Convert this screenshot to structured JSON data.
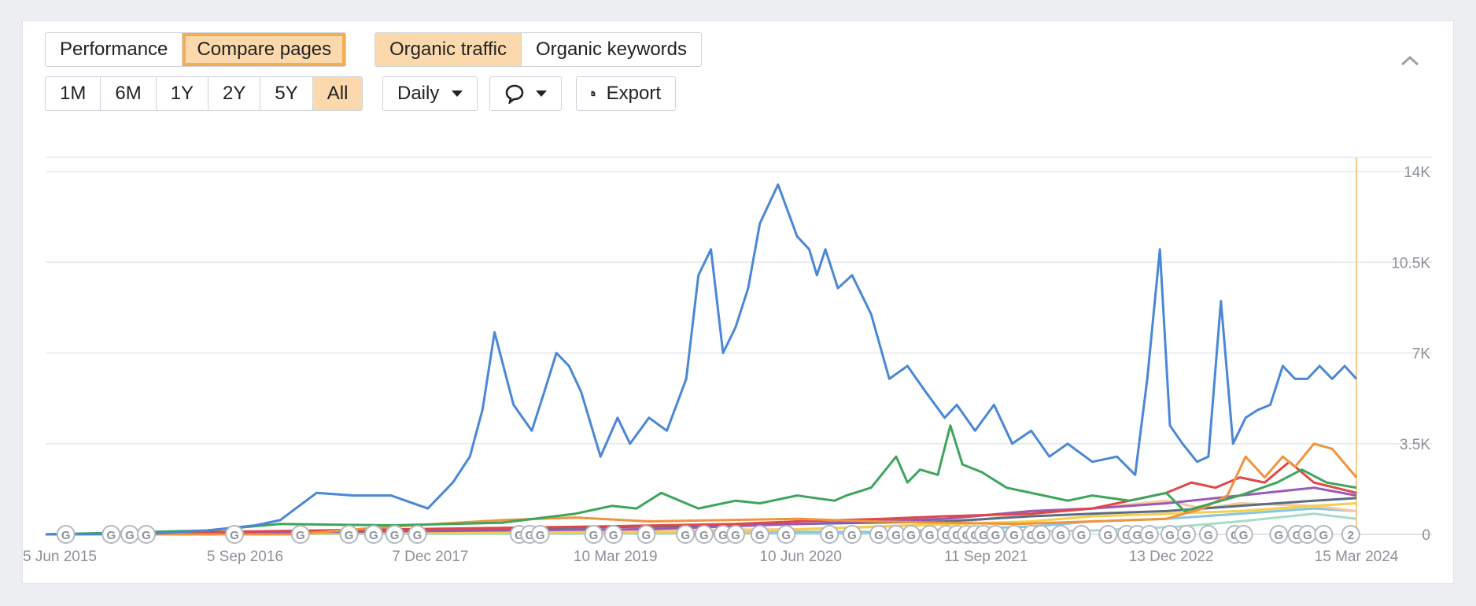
{
  "toolbar": {
    "view_tabs": [
      "Performance",
      "Compare pages"
    ],
    "metric_tabs": [
      "Organic traffic",
      "Organic keywords"
    ],
    "ranges": [
      "1M",
      "6M",
      "1Y",
      "2Y",
      "5Y",
      "All"
    ],
    "interval": "Daily",
    "export_label": "Export",
    "active_view": "Compare pages",
    "active_metric": "Organic traffic",
    "active_range": "All"
  },
  "icons": [
    "chevron-up-icon",
    "caret-down-icon",
    "comment-icon",
    "download-file-icon",
    "google-update-icon"
  ],
  "colors": {
    "accent": "#fbd9ac",
    "accent_border": "#f3ae4d",
    "grid": "#e6e8eb",
    "tick": "#8b9099"
  },
  "annotations": {
    "update_marker_label": "G",
    "cluster_count": "2"
  },
  "chart_data": {
    "type": "line",
    "title": "",
    "xlabel": "",
    "ylabel": "",
    "x_ticks": [
      "5 Jun 2015",
      "5 Sep 2016",
      "7 Dec 2017",
      "10 Mar 2019",
      "10 Jun 2020",
      "11 Sep 2021",
      "13 Dec 2022",
      "15 Mar 2024"
    ],
    "y_ticks": [
      "0",
      "3.5K",
      "7K",
      "10.5K",
      "14K"
    ],
    "ylim": [
      0,
      14000
    ],
    "xlim": [
      "2015-05-01",
      "2024-03-15"
    ],
    "grid": true,
    "legend": "none",
    "series": [
      {
        "color": "#4a87d4",
        "x": [
          "2015-05-01",
          "2016-01-01",
          "2016-06-01",
          "2016-10-01",
          "2016-12-01",
          "2017-03-01",
          "2017-06-01",
          "2017-09-01",
          "2017-12-01",
          "2018-02-01",
          "2018-03-15",
          "2018-04-15",
          "2018-05-15",
          "2018-07-01",
          "2018-08-15",
          "2018-09-15",
          "2018-10-15",
          "2018-11-15",
          "2018-12-15",
          "2019-02-01",
          "2019-03-15",
          "2019-04-15",
          "2019-06-01",
          "2019-07-15",
          "2019-09-01",
          "2019-10-01",
          "2019-11-01",
          "2019-12-01",
          "2020-01-01",
          "2020-02-01",
          "2020-03-01",
          "2020-04-15",
          "2020-06-01",
          "2020-07-01",
          "2020-07-20",
          "2020-08-10",
          "2020-09-10",
          "2020-10-15",
          "2020-12-01",
          "2021-01-15",
          "2021-03-01",
          "2021-04-15",
          "2021-06-01",
          "2021-07-01",
          "2021-08-15",
          "2021-10-01",
          "2021-11-15",
          "2022-01-01",
          "2022-02-15",
          "2022-04-01",
          "2022-06-01",
          "2022-08-01",
          "2022-09-15",
          "2022-10-15",
          "2022-11-15",
          "2022-12-10",
          "2023-01-10",
          "2023-02-15",
          "2023-03-15",
          "2023-04-15",
          "2023-05-15",
          "2023-06-15",
          "2023-07-15",
          "2023-08-15",
          "2023-09-15",
          "2023-10-15",
          "2023-11-15",
          "2023-12-15",
          "2024-01-15",
          "2024-02-15",
          "2024-03-15"
        ],
        "y": [
          0,
          20,
          150,
          350,
          550,
          1600,
          1500,
          1500,
          1000,
          2000,
          3000,
          4800,
          7800,
          5000,
          4000,
          5500,
          7000,
          6500,
          5500,
          3000,
          4500,
          3500,
          4500,
          4000,
          6000,
          10000,
          11000,
          7000,
          8000,
          9500,
          12000,
          13500,
          11500,
          11000,
          10000,
          11000,
          9500,
          10000,
          8500,
          6000,
          6500,
          5500,
          4500,
          5000,
          4000,
          5000,
          3500,
          4000,
          3000,
          3500,
          2800,
          3000,
          2300,
          6000,
          11000,
          4200,
          3500,
          2800,
          3000,
          9000,
          3500,
          4500,
          4800,
          5000,
          6500,
          6000,
          6000,
          6500,
          6000,
          6500,
          6000
        ]
      },
      {
        "color": "#3fa45c",
        "x": [
          "2015-05-01",
          "2016-06-01",
          "2016-12-01",
          "2017-09-01",
          "2018-06-01",
          "2018-12-01",
          "2019-03-01",
          "2019-05-01",
          "2019-07-01",
          "2019-10-01",
          "2020-01-01",
          "2020-03-01",
          "2020-06-01",
          "2020-09-01",
          "2020-10-01",
          "2020-12-01",
          "2021-02-01",
          "2021-03-01",
          "2021-04-01",
          "2021-05-15",
          "2021-06-15",
          "2021-07-15",
          "2021-09-01",
          "2021-11-01",
          "2022-02-01",
          "2022-04-01",
          "2022-06-01",
          "2022-09-01",
          "2022-12-01",
          "2023-01-15",
          "2023-03-01",
          "2023-06-01",
          "2023-09-01",
          "2023-11-01",
          "2024-01-01",
          "2024-03-15"
        ],
        "y": [
          0,
          150,
          400,
          350,
          450,
          800,
          1100,
          1000,
          1600,
          1000,
          1300,
          1200,
          1500,
          1300,
          1500,
          1800,
          3000,
          2000,
          2500,
          2300,
          4200,
          2700,
          2400,
          1800,
          1500,
          1300,
          1500,
          1300,
          1600,
          900,
          1100,
          1500,
          2000,
          2500,
          2000,
          1800
        ]
      },
      {
        "color": "#f0943d",
        "x": [
          "2015-05-01",
          "2017-01-01",
          "2017-09-01",
          "2018-06-01",
          "2018-12-01",
          "2019-06-01",
          "2019-12-01",
          "2020-06-01",
          "2020-12-01",
          "2021-06-01",
          "2021-12-01",
          "2022-06-01",
          "2022-12-01",
          "2023-03-01",
          "2023-05-01",
          "2023-06-15",
          "2023-08-01",
          "2023-09-15",
          "2023-10-15",
          "2023-12-01",
          "2024-01-15",
          "2024-03-15"
        ],
        "y": [
          0,
          0,
          300,
          550,
          650,
          500,
          550,
          600,
          500,
          450,
          400,
          500,
          600,
          1000,
          1500,
          3000,
          2200,
          3000,
          2600,
          3500,
          3300,
          2200
        ]
      },
      {
        "color": "#e04848",
        "x": [
          "2015-05-01",
          "2019-01-01",
          "2020-01-01",
          "2020-06-01",
          "2021-01-01",
          "2021-06-01",
          "2022-01-01",
          "2022-06-01",
          "2022-09-01",
          "2022-12-01",
          "2023-02-01",
          "2023-04-01",
          "2023-06-01",
          "2023-08-01",
          "2023-10-01",
          "2023-12-01",
          "2024-03-15"
        ],
        "y": [
          0,
          300,
          400,
          500,
          600,
          700,
          800,
          1000,
          1300,
          1600,
          2000,
          1800,
          2200,
          2000,
          2800,
          2000,
          1600
        ]
      },
      {
        "color": "#9b59b6",
        "x": [
          "2015-05-01",
          "2019-06-01",
          "2020-06-01",
          "2021-06-01",
          "2022-01-01",
          "2022-06-01",
          "2022-12-01",
          "2023-06-01",
          "2023-12-01",
          "2024-03-15"
        ],
        "y": [
          0,
          200,
          400,
          600,
          900,
          1000,
          1200,
          1500,
          1800,
          1500
        ]
      },
      {
        "color": "#5c6d82",
        "x": [
          "2015-05-01",
          "2019-06-01",
          "2020-06-01",
          "2021-06-01",
          "2022-01-01",
          "2022-06-01",
          "2022-12-01",
          "2023-06-01",
          "2023-12-01",
          "2024-03-15"
        ],
        "y": [
          0,
          300,
          400,
          500,
          700,
          800,
          900,
          1100,
          1300,
          1400
        ]
      },
      {
        "color": "#f5cf4a",
        "x": [
          "2015-05-01",
          "2020-01-01",
          "2021-01-01",
          "2022-01-01",
          "2022-06-01",
          "2022-12-01",
          "2023-06-01",
          "2023-12-01",
          "2024-03-15"
        ],
        "y": [
          0,
          100,
          300,
          500,
          700,
          800,
          900,
          1100,
          1200
        ]
      },
      {
        "color": "#f7c9a0",
        "x": [
          "2015-05-01",
          "2020-06-01",
          "2021-06-01",
          "2022-01-01",
          "2022-06-01",
          "2022-12-01",
          "2023-03-01",
          "2023-06-01",
          "2023-12-01",
          "2024-03-15"
        ],
        "y": [
          0,
          200,
          400,
          800,
          1000,
          1300,
          1000,
          1200,
          1100,
          900
        ]
      },
      {
        "color": "#86c5e8",
        "x": [
          "2015-05-01",
          "2021-01-01",
          "2022-01-01",
          "2022-06-01",
          "2022-12-01",
          "2023-06-01",
          "2023-12-01",
          "2024-03-15"
        ],
        "y": [
          0,
          100,
          300,
          500,
          600,
          800,
          1000,
          900
        ]
      },
      {
        "color": "#a8dcc6",
        "x": [
          "2015-05-01",
          "2021-01-01",
          "2022-06-01",
          "2023-01-01",
          "2023-06-01",
          "2023-12-01",
          "2024-03-15"
        ],
        "y": [
          0,
          50,
          150,
          300,
          500,
          800,
          600
        ]
      }
    ],
    "update_markers": [
      "2015-06-20",
      "2015-10-10",
      "2015-11-25",
      "2016-01-05",
      "2016-08-10",
      "2017-01-20",
      "2017-05-20",
      "2017-07-20",
      "2017-09-10",
      "2017-11-05",
      "2018-07-15",
      "2018-08-10",
      "2018-09-05",
      "2019-01-15",
      "2019-03-05",
      "2019-05-25",
      "2019-08-30",
      "2019-10-15",
      "2019-12-01",
      "2020-01-01",
      "2020-03-01",
      "2020-05-05",
      "2020-08-20",
      "2020-10-15",
      "2020-12-20",
      "2021-02-01",
      "2021-03-10",
      "2021-04-25",
      "2021-06-05",
      "2021-07-01",
      "2021-07-25",
      "2021-08-15",
      "2021-09-05",
      "2021-10-05",
      "2021-11-20",
      "2022-01-01",
      "2022-01-25",
      "2022-03-15",
      "2022-05-05",
      "2022-07-10",
      "2022-08-25",
      "2022-09-20",
      "2022-10-20",
      "2022-12-10",
      "2023-01-20",
      "2023-03-15",
      "2023-05-20",
      "2023-06-10",
      "2023-09-05",
      "2023-10-20",
      "2023-11-15",
      "2023-12-25"
    ],
    "update_cluster": "2024-03-01"
  }
}
